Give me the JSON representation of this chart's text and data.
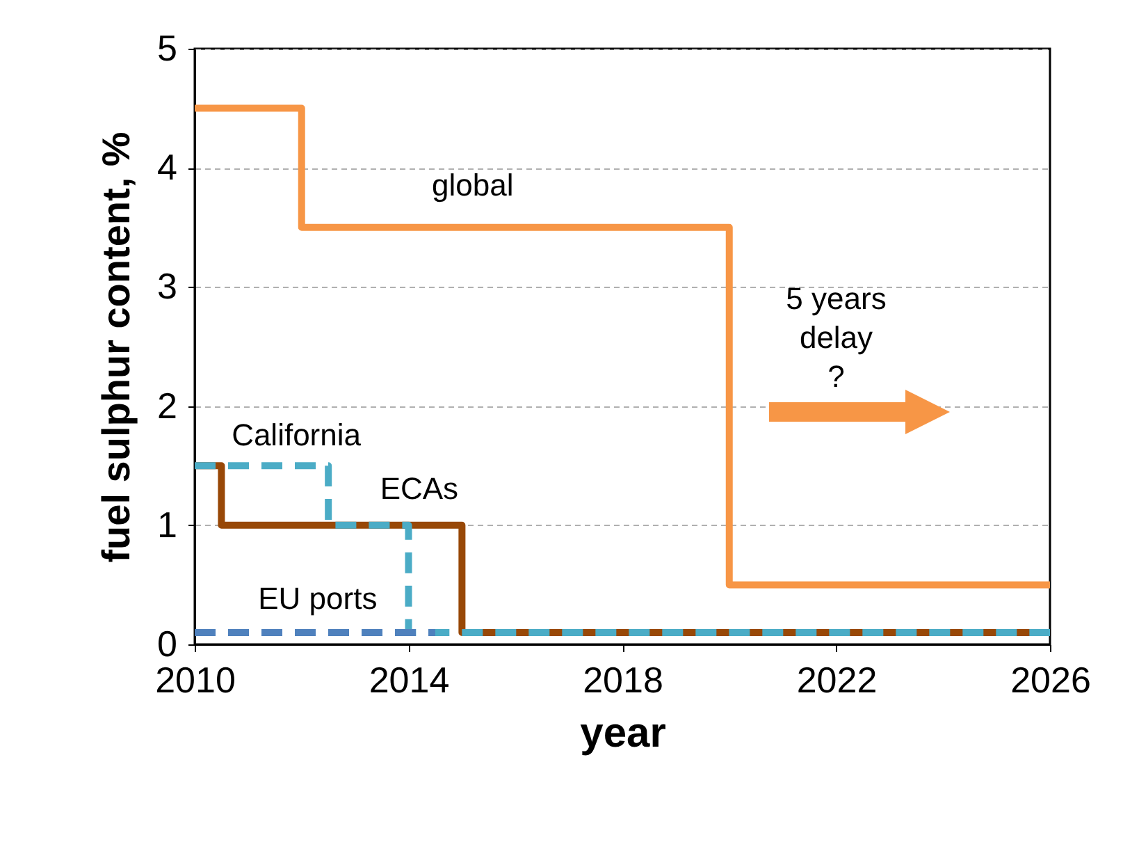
{
  "chart_data": {
    "type": "step",
    "xlabel": "year",
    "ylabel": "fuel sulphur content, %",
    "xlim": [
      2010,
      2026
    ],
    "xticks": [
      2010,
      2014,
      2018,
      2022,
      2026
    ],
    "ylim": [
      0,
      5
    ],
    "yticks": [
      0,
      1,
      2,
      3,
      4,
      5
    ],
    "grid": "y",
    "marker": "none",
    "series": [
      {
        "name": "global",
        "color": "#f79646",
        "line_style": "solid",
        "x": [
          2010,
          2012,
          2020,
          2026
        ],
        "values": [
          4.5,
          3.5,
          0.5,
          0.5
        ]
      },
      {
        "name": "California",
        "color": "#984807",
        "line_style": "solid",
        "x": [
          2010,
          2010.5,
          2015,
          2026
        ],
        "values": [
          1.5,
          1,
          0.1,
          0.1
        ]
      },
      {
        "name": "ECAs",
        "color": "#4bacc6",
        "line_style": "dashed",
        "x": [
          2010,
          2012.5,
          2014,
          2026
        ],
        "values": [
          1.5,
          1,
          0.1,
          0.1
        ]
      },
      {
        "name": "EU ports",
        "color": "#4f81bd",
        "line_style": "dashed",
        "x": [
          2010,
          2014.5
        ],
        "values": [
          0.1,
          0.1
        ]
      }
    ],
    "annotations": [
      "5 years\ndelay\n?"
    ]
  }
}
